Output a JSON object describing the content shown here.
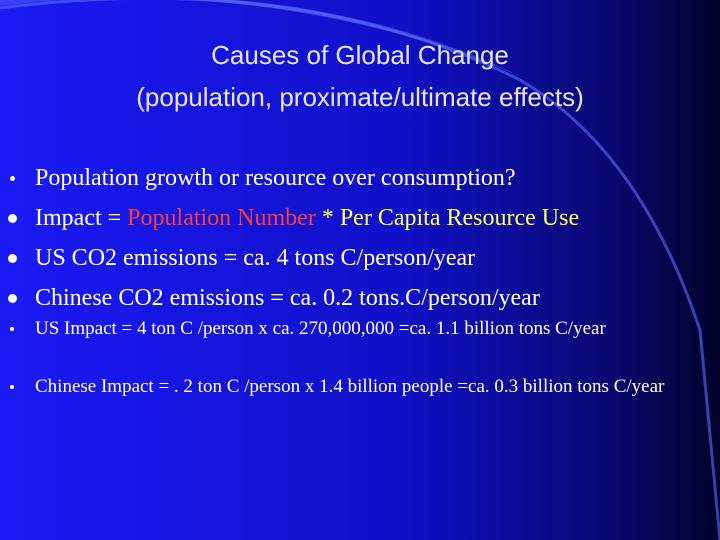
{
  "title": {
    "line1": "Causes of Global Change",
    "line2": "(population, proximate/ultimate effects)"
  },
  "bullets": [
    {
      "segments": [
        {
          "text": "Population growth or resource over consumption?",
          "color": "#ffffff"
        }
      ]
    },
    {
      "segments": [
        {
          "text": "Impact = ",
          "color": "#ffffff"
        },
        {
          "text": "Population Number",
          "color": "#ff3b3b"
        },
        {
          "text": " * Per Capita Resource Use",
          "color": "#ffff66"
        }
      ]
    },
    {
      "segments": [
        {
          "text": "US CO2 emissions = ca. 4 tons C/person/year",
          "color": "#ffffff"
        }
      ]
    },
    {
      "segments": [
        {
          "text": "Chinese CO2 emissions = ca. 0.2 tons.C/person/year",
          "color": "#ffffff"
        }
      ]
    },
    {
      "segments": [
        {
          "text": "US Impact = 4 ton C /person x ca. 270,000,000 =ca. 1.1 billion tons C/year",
          "color": "#ffffff"
        }
      ]
    },
    {
      "segments": [
        {
          "text": "Chinese Impact = . 2 ton C /person x 1.4 billion people =ca. 0.3 billion tons C/year",
          "color": "#ffffff"
        }
      ]
    }
  ]
}
